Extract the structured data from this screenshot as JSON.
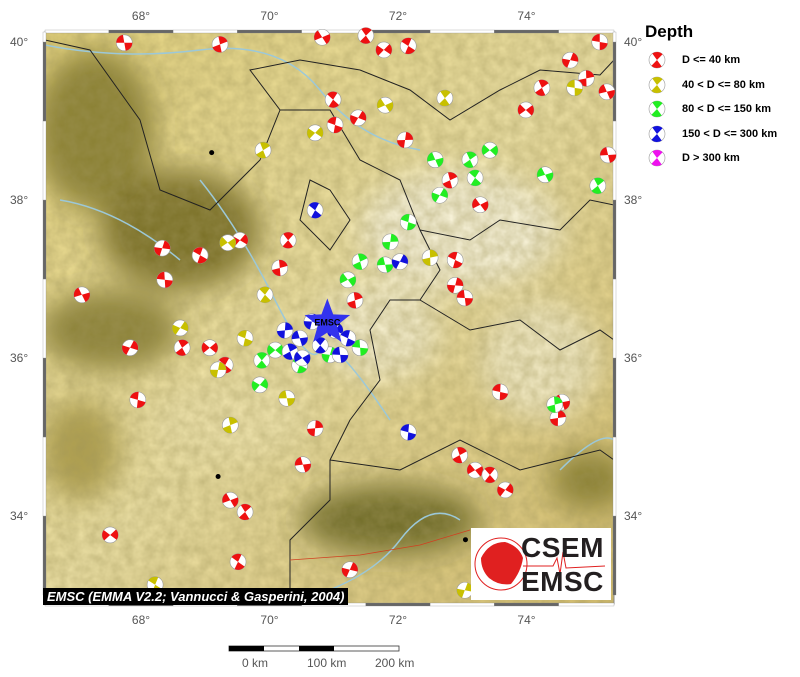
{
  "map": {
    "lon_range": [
      66.5,
      75.4
    ],
    "lat_range": [
      32.9,
      40.1
    ],
    "lon_ticks": [
      "68°",
      "70°",
      "72°",
      "74°"
    ],
    "lon_tick_values": [
      68,
      70,
      72,
      74
    ],
    "lat_ticks": [
      "40°",
      "38°",
      "36°",
      "34°"
    ],
    "lat_tick_values": [
      40,
      38,
      36,
      34
    ],
    "epicenter_label": "EMSC",
    "epicenter": [
      70.9,
      36.45
    ],
    "epicenter_color": "#3333ee",
    "cities": [
      [
        69.1,
        38.6
      ],
      [
        69.2,
        34.5
      ],
      [
        73.05,
        33.7
      ]
    ],
    "events": [
      [
        67.74,
        39.99,
        0
      ],
      [
        69.23,
        39.97,
        0
      ],
      [
        70.82,
        40.06,
        0
      ],
      [
        71.5,
        40.08,
        0
      ],
      [
        71.78,
        39.9,
        0
      ],
      [
        72.16,
        39.95,
        0
      ],
      [
        74.68,
        39.77,
        0
      ],
      [
        75.14,
        40.0,
        0
      ],
      [
        74.93,
        39.54,
        0
      ],
      [
        75.25,
        39.37,
        0
      ],
      [
        74.24,
        39.42,
        0
      ],
      [
        73.99,
        39.14,
        0
      ],
      [
        70.99,
        39.27,
        0
      ],
      [
        71.38,
        39.04,
        0
      ],
      [
        71.02,
        38.95,
        0
      ],
      [
        72.11,
        38.76,
        0
      ],
      [
        75.27,
        38.57,
        0
      ],
      [
        72.81,
        38.25,
        0
      ],
      [
        73.28,
        37.94,
        0
      ],
      [
        70.29,
        37.49,
        0
      ],
      [
        69.54,
        37.49,
        0
      ],
      [
        68.92,
        37.3,
        0
      ],
      [
        68.33,
        37.39,
        0
      ],
      [
        68.37,
        36.99,
        0
      ],
      [
        70.16,
        37.14,
        0
      ],
      [
        67.08,
        36.8,
        0
      ],
      [
        68.64,
        36.13,
        0
      ],
      [
        69.07,
        36.13,
        0
      ],
      [
        69.31,
        35.91,
        0
      ],
      [
        67.83,
        36.13,
        0
      ],
      [
        67.95,
        35.47,
        0
      ],
      [
        70.71,
        35.11,
        0
      ],
      [
        70.52,
        34.65,
        0
      ],
      [
        72.96,
        34.77,
        0
      ],
      [
        73.2,
        34.58,
        0
      ],
      [
        73.43,
        34.52,
        0
      ],
      [
        73.67,
        34.33,
        0
      ],
      [
        72.89,
        37.24,
        0
      ],
      [
        72.89,
        36.92,
        0
      ],
      [
        73.04,
        36.76,
        0
      ],
      [
        71.33,
        36.73,
        0
      ],
      [
        69.39,
        34.2,
        0
      ],
      [
        69.62,
        34.05,
        0
      ],
      [
        67.52,
        33.76,
        0
      ],
      [
        69.51,
        33.42,
        0
      ],
      [
        71.25,
        33.32,
        0
      ],
      [
        73.59,
        35.57,
        0
      ],
      [
        74.49,
        35.24,
        0
      ],
      [
        74.55,
        35.44,
        0
      ],
      [
        69.9,
        38.63,
        1
      ],
      [
        69.35,
        37.46,
        1
      ],
      [
        69.93,
        36.8,
        1
      ],
      [
        68.61,
        36.38,
        1
      ],
      [
        69.62,
        36.25,
        1
      ],
      [
        69.2,
        35.85,
        1
      ],
      [
        70.27,
        35.49,
        1
      ],
      [
        69.39,
        35.15,
        1
      ],
      [
        71.8,
        39.2,
        1
      ],
      [
        72.73,
        39.29,
        1
      ],
      [
        70.71,
        38.85,
        1
      ],
      [
        68.22,
        33.13,
        1
      ],
      [
        73.04,
        33.06,
        1
      ],
      [
        74.75,
        39.42,
        1
      ],
      [
        72.5,
        37.27,
        1
      ],
      [
        72.58,
        38.51,
        2
      ],
      [
        73.12,
        38.51,
        2
      ],
      [
        73.43,
        38.63,
        2
      ],
      [
        73.2,
        38.28,
        2
      ],
      [
        72.65,
        38.06,
        2
      ],
      [
        72.16,
        37.72,
        2
      ],
      [
        71.88,
        37.47,
        2
      ],
      [
        71.8,
        37.18,
        2
      ],
      [
        71.41,
        37.22,
        2
      ],
      [
        71.22,
        36.99,
        2
      ],
      [
        69.88,
        35.97,
        2
      ],
      [
        69.85,
        35.66,
        2
      ],
      [
        70.47,
        35.91,
        2
      ],
      [
        70.94,
        36.04,
        2
      ],
      [
        71.41,
        36.13,
        2
      ],
      [
        74.44,
        35.41,
        2
      ],
      [
        74.29,
        38.32,
        2
      ],
      [
        75.11,
        38.18,
        2
      ],
      [
        70.09,
        36.1,
        2
      ],
      [
        70.71,
        37.87,
        3
      ],
      [
        72.03,
        37.22,
        3
      ],
      [
        72.16,
        35.06,
        3
      ],
      [
        70.24,
        36.35,
        3
      ],
      [
        70.47,
        36.25,
        3
      ],
      [
        70.32,
        36.08,
        3
      ],
      [
        70.51,
        36.0,
        3
      ],
      [
        70.79,
        36.16,
        3
      ],
      [
        71.02,
        36.35,
        3
      ],
      [
        71.22,
        36.25,
        3
      ],
      [
        70.66,
        36.46,
        3
      ],
      [
        71.1,
        36.04,
        3
      ]
    ]
  },
  "legend": {
    "title": "Depth",
    "items": [
      {
        "label": "D <= 40 km",
        "color": "#ee1111"
      },
      {
        "label": "40 < D <= 80 km",
        "color": "#c8c000"
      },
      {
        "label": "80 < D <= 150 km",
        "color": "#22ee22"
      },
      {
        "label": "150 < D <= 300 km",
        "color": "#1111dd"
      },
      {
        "label": "D > 300 km",
        "color": "#ee11ee"
      }
    ]
  },
  "credit": "EMSC (EMMA V2.2; Vannucci & Gasperini, 2004)",
  "scale_bar": {
    "labels": [
      "0 km",
      "100 km",
      "200 km"
    ]
  },
  "logo": {
    "line1": "CSEM",
    "line2": "EMSC",
    "color": "#e02020"
  }
}
